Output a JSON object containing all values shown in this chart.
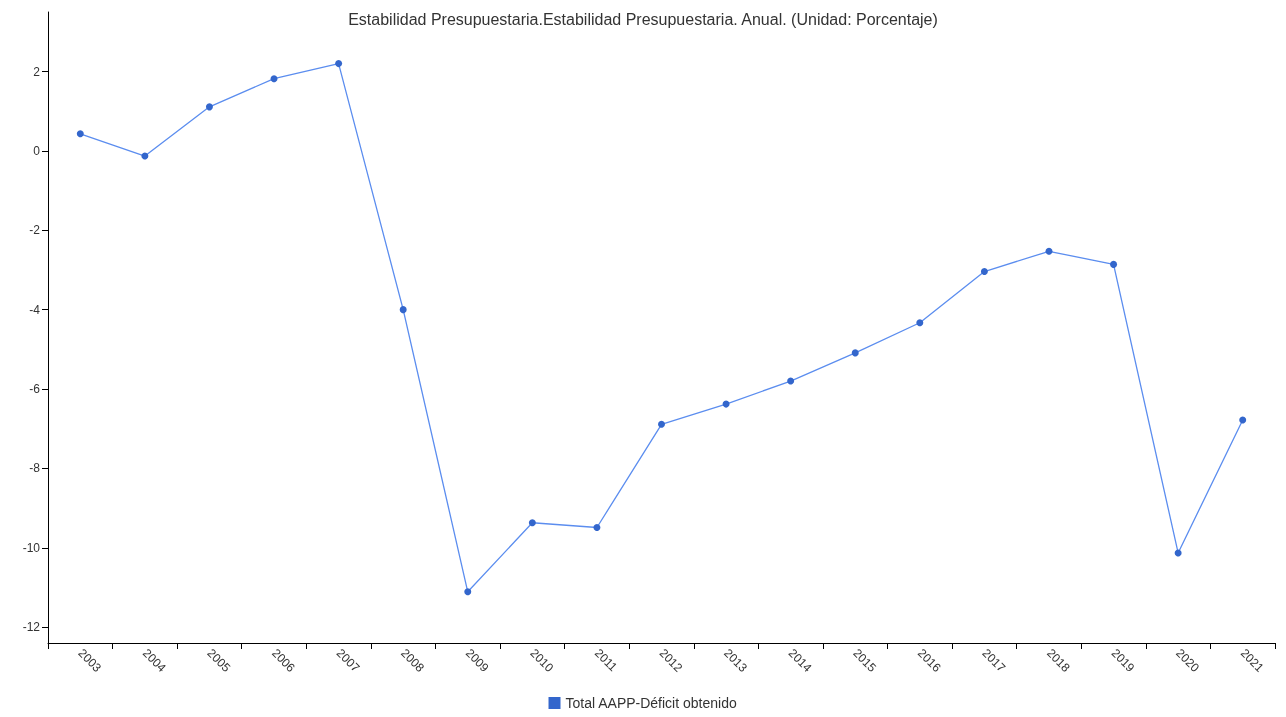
{
  "chart_data": {
    "type": "line",
    "title": "Estabilidad Presupuestaria.Estabilidad Presupuestaria. Anual. (Unidad: Porcentaje)",
    "categories": [
      "2003",
      "2004",
      "2005",
      "2006",
      "2007",
      "2008",
      "2009",
      "2010",
      "2011",
      "2012",
      "2013",
      "2014",
      "2015",
      "2016",
      "2017",
      "2018",
      "2019",
      "2020",
      "2021"
    ],
    "series": [
      {
        "name": "Total AAPP-Déficit obtenido",
        "color": "#3366cc",
        "values": [
          0.43,
          -0.13,
          1.11,
          1.82,
          2.2,
          -4.0,
          -11.11,
          -9.37,
          -9.49,
          -6.89,
          -6.38,
          -5.8,
          -5.09,
          -4.33,
          -3.04,
          -2.53,
          -2.86,
          -10.13,
          -6.78
        ]
      }
    ],
    "ylim": [
      -12.4,
      3.5
    ],
    "yticks": [
      -12,
      -10,
      -8,
      -6,
      -4,
      -2,
      0,
      2
    ],
    "grid": false,
    "legend": "bottom",
    "marker": "circle",
    "line_style": "solid"
  }
}
